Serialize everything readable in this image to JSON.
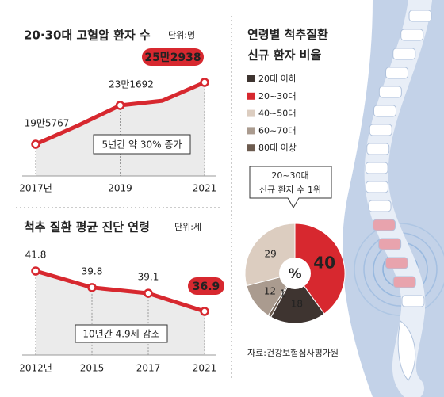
{
  "chart_data": [
    {
      "type": "line",
      "title": "20·30대 고혈압 환자 수",
      "unit": "단위:명",
      "categories": [
        "2017년",
        null,
        "2019",
        null,
        "2021"
      ],
      "values": [
        195767,
        213000,
        231692,
        236000,
        252938
      ],
      "value_labels": [
        "19만5767",
        null,
        "23만1692",
        null,
        "25만2938"
      ],
      "color": "#d7282f",
      "annotation": "5년간 약 30% 증가"
    },
    {
      "type": "line",
      "title": "척추 질환 평균 진단 연령",
      "unit": "단위:세",
      "categories": [
        "2012년",
        "2015",
        "2017",
        "2021"
      ],
      "values": [
        41.8,
        39.8,
        39.1,
        36.9
      ],
      "color": "#d7282f",
      "annotation": "10년간 4.9세 감소"
    },
    {
      "type": "pie",
      "title": [
        "연령별 척추질환",
        "신규 환자 비율"
      ],
      "categories": [
        "20대 이하",
        "20~30대",
        "40~50대",
        "60~70대",
        "80대 이상"
      ],
      "values": [
        18,
        40,
        29,
        12,
        1
      ],
      "colors": [
        "#3e3430",
        "#d7282f",
        "#dccdc0",
        "#aa9b8f",
        "#6c5b4f"
      ],
      "center_label": "%",
      "annotation": [
        "20~30대",
        "신규 환자 수 1위"
      ],
      "source": "자료:건강보험심사평가원"
    }
  ]
}
